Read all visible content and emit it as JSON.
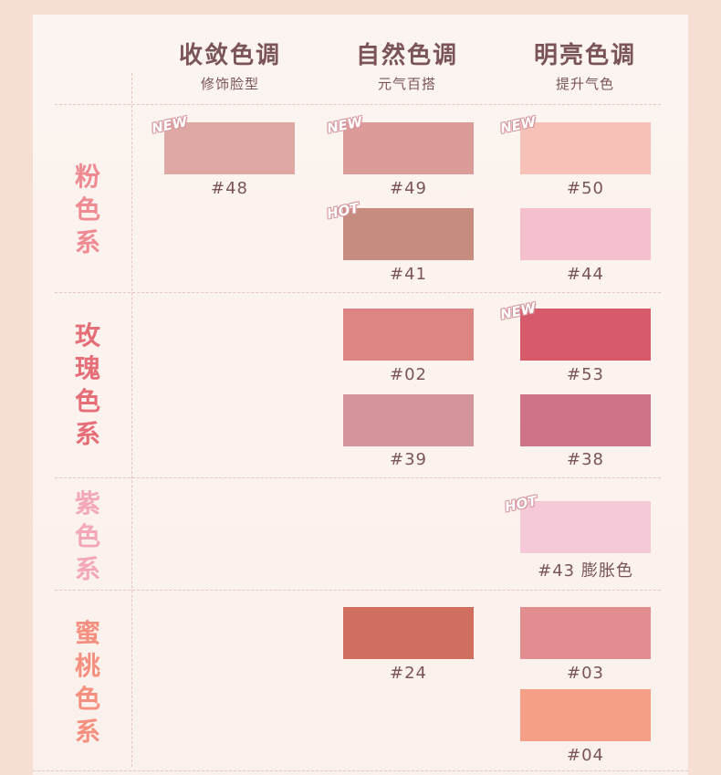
{
  "columns": [
    {
      "title": "收敛色调",
      "subtitle": "修饰脸型"
    },
    {
      "title": "自然色调",
      "subtitle": "元气百搭"
    },
    {
      "title": "明亮色调",
      "subtitle": "提升气色"
    }
  ],
  "categories": [
    {
      "chars": [
        "粉",
        "色",
        "系"
      ],
      "color": "#f08a93"
    },
    {
      "chars": [
        "玫",
        "瑰",
        "色",
        "系"
      ],
      "color": "#e66e78"
    },
    {
      "chars": [
        "紫",
        "色",
        "系"
      ],
      "color": "#f3a7b9"
    },
    {
      "chars": [
        "蜜",
        "桃",
        "色",
        "系"
      ],
      "color": "#f59080"
    }
  ],
  "badges": {
    "new": "NEW",
    "hot": "HOT"
  },
  "swatches": [
    {
      "code": "#48",
      "color": "#dea8a4"
    },
    {
      "code": "#49",
      "color": "#dc9a99"
    },
    {
      "code": "#50",
      "color": "#f6c2b8"
    },
    {
      "code": "#41",
      "color": "#c68c80"
    },
    {
      "code": "#44",
      "color": "#f5bfcd"
    },
    {
      "code": "#02",
      "color": "#dd8583"
    },
    {
      "code": "#53",
      "color": "#d65a6a"
    },
    {
      "code": "#39",
      "color": "#d4949c"
    },
    {
      "code": "#38",
      "color": "#cf7387"
    },
    {
      "code": "#43 膨胀色",
      "color": "#f6c9d8"
    },
    {
      "code": "#24",
      "color": "#d06e5f"
    },
    {
      "code": "#03",
      "color": "#e28d90"
    },
    {
      "code": "#04",
      "color": "#f59f86"
    }
  ]
}
